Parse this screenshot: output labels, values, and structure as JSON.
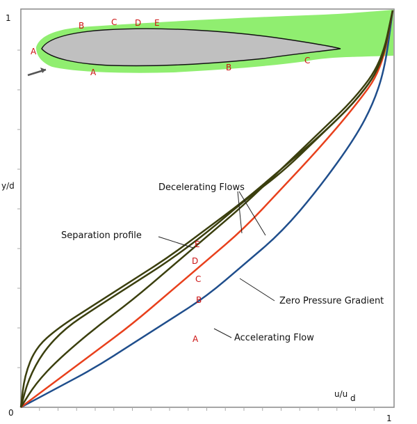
{
  "chart_data": {
    "type": "line",
    "title": "",
    "xlabel": "u/u",
    "xlabel_sub": "d",
    "ylabel": "y/d",
    "xlim": [
      0,
      1
    ],
    "ylim": [
      0,
      1
    ],
    "x_ticks": [
      "0",
      "1"
    ],
    "y_ticks": [
      "0",
      "1"
    ],
    "grid": false,
    "series": [
      {
        "name": "A",
        "color": "#1f4e8c",
        "points": [
          [
            0,
            0
          ],
          [
            0.1,
            0.05
          ],
          [
            0.2,
            0.1
          ],
          [
            0.3,
            0.16
          ],
          [
            0.4,
            0.22
          ],
          [
            0.5,
            0.28
          ],
          [
            0.6,
            0.36
          ],
          [
            0.7,
            0.44
          ],
          [
            0.8,
            0.55
          ],
          [
            0.9,
            0.68
          ],
          [
            0.95,
            0.77
          ],
          [
            0.98,
            0.86
          ],
          [
            1.0,
            1.0
          ]
        ]
      },
      {
        "name": "B",
        "color": "#e8401c",
        "points": [
          [
            0,
            0
          ],
          [
            0.1,
            0.07
          ],
          [
            0.2,
            0.14
          ],
          [
            0.3,
            0.21
          ],
          [
            0.4,
            0.29
          ],
          [
            0.5,
            0.37
          ],
          [
            0.6,
            0.45
          ],
          [
            0.7,
            0.55
          ],
          [
            0.8,
            0.65
          ],
          [
            0.9,
            0.76
          ],
          [
            0.97,
            0.85
          ],
          [
            1.0,
            1.0
          ]
        ]
      },
      {
        "name": "C",
        "color": "#3b3f0e",
        "points": [
          [
            0,
            0
          ],
          [
            0.04,
            0.06
          ],
          [
            0.1,
            0.12
          ],
          [
            0.2,
            0.2
          ],
          [
            0.3,
            0.27
          ],
          [
            0.4,
            0.35
          ],
          [
            0.5,
            0.43
          ],
          [
            0.6,
            0.51
          ],
          [
            0.7,
            0.6
          ],
          [
            0.8,
            0.69
          ],
          [
            0.9,
            0.78
          ],
          [
            0.97,
            0.87
          ],
          [
            1.0,
            1.0
          ]
        ]
      },
      {
        "name": "D",
        "color": "#3b3f0e",
        "points": [
          [
            0,
            0
          ],
          [
            0.02,
            0.07
          ],
          [
            0.06,
            0.14
          ],
          [
            0.12,
            0.2
          ],
          [
            0.2,
            0.25
          ],
          [
            0.3,
            0.31
          ],
          [
            0.4,
            0.37
          ],
          [
            0.5,
            0.44
          ],
          [
            0.6,
            0.52
          ],
          [
            0.7,
            0.59
          ],
          [
            0.8,
            0.68
          ],
          [
            0.9,
            0.77
          ],
          [
            0.97,
            0.86
          ],
          [
            1.0,
            1.0
          ]
        ]
      },
      {
        "name": "E",
        "color": "#3b3f0e",
        "points": [
          [
            0,
            0
          ],
          [
            0.01,
            0.08
          ],
          [
            0.04,
            0.15
          ],
          [
            0.1,
            0.2
          ],
          [
            0.2,
            0.26
          ],
          [
            0.3,
            0.32
          ],
          [
            0.4,
            0.38
          ],
          [
            0.5,
            0.45
          ],
          [
            0.6,
            0.52
          ],
          [
            0.7,
            0.6
          ],
          [
            0.8,
            0.68
          ],
          [
            0.9,
            0.77
          ],
          [
            0.97,
            0.86
          ],
          [
            1.0,
            1.0
          ]
        ]
      }
    ],
    "annotations": [
      {
        "text": "Decelerating Flows",
        "target": "D/E"
      },
      {
        "text": "Separation profile",
        "target": "E"
      },
      {
        "text": "Zero Pressure Gradient",
        "target": "B"
      },
      {
        "text": "Accelerating Flow",
        "target": "A"
      }
    ],
    "curve_letters": [
      "A",
      "B",
      "C",
      "D",
      "E"
    ],
    "letter_color": "#cc1111",
    "inset": {
      "description_colors": {
        "airfoil": "#c0c0c0",
        "flow": "#90ee70"
      },
      "upper_labels": [
        "B",
        "C",
        "D",
        "E"
      ],
      "lower_labels": [
        "A",
        "B",
        "C"
      ],
      "leading_label": "A"
    }
  }
}
